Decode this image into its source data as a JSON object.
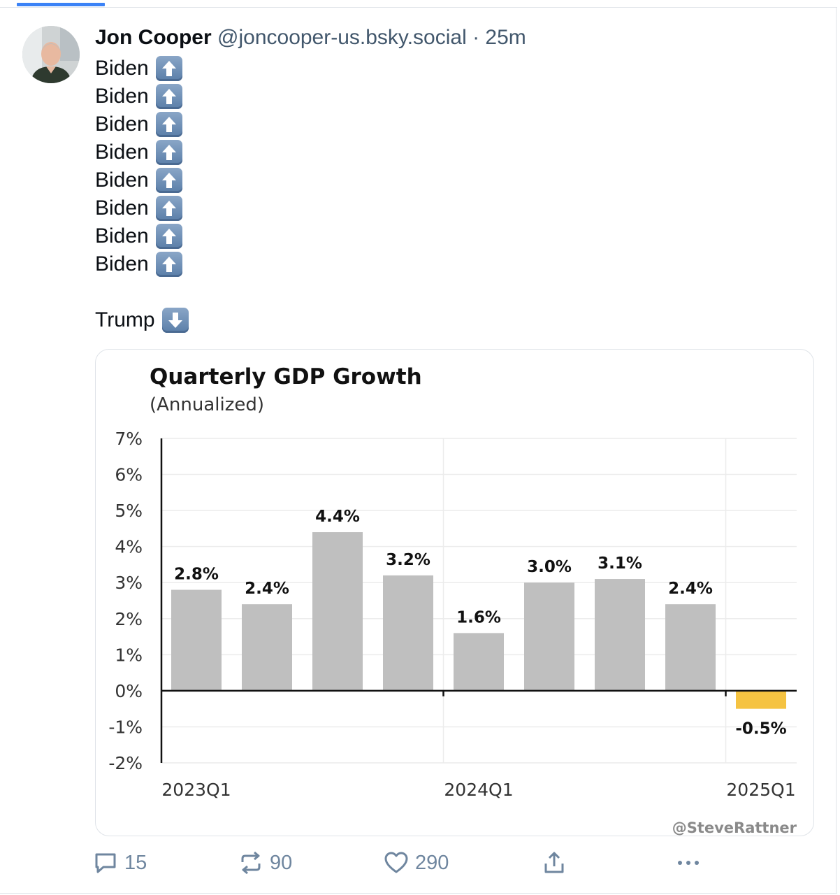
{
  "post": {
    "author_name": "Jon Cooper",
    "author_handle": "@joncooper-us.bsky.social",
    "separator": "·",
    "time": "25m",
    "lines": [
      "Biden",
      "Biden",
      "Biden",
      "Biden",
      "Biden",
      "Biden",
      "Biden",
      "Biden"
    ],
    "line_icon": "up-arrow-emoji-icon",
    "trump_line": "Trump",
    "trump_icon": "down-arrow-emoji-icon"
  },
  "embed": {
    "credit": "@SteveRattner"
  },
  "chart_data": {
    "type": "bar",
    "title": "Quarterly GDP Growth",
    "subtitle": "(Annualized)",
    "xlabel": "",
    "ylabel": "",
    "values": [
      2.8,
      2.4,
      4.4,
      3.2,
      1.6,
      3.0,
      3.1,
      2.4,
      -0.5
    ],
    "data_labels": [
      "2.8%",
      "2.4%",
      "4.4%",
      "3.2%",
      "1.6%",
      "3.0%",
      "3.1%",
      "2.4%",
      "-0.5%"
    ],
    "x_tick_labels": [
      "2023Q1",
      "2024Q1",
      "2025Q1"
    ],
    "x_tick_positions": [
      0,
      4,
      8
    ],
    "ylim": [
      -2,
      7
    ],
    "y_ticks": [
      -2,
      -1,
      0,
      1,
      2,
      3,
      4,
      5,
      6,
      7
    ],
    "y_tick_labels": [
      "-2%",
      "-1%",
      "0%",
      "1%",
      "2%",
      "3%",
      "4%",
      "5%",
      "6%",
      "7%"
    ],
    "grid": true,
    "colors": {
      "bar": "#bfbfbf",
      "highlight": "#f5c342",
      "highlight_index": 8
    }
  },
  "actions": {
    "replies": "15",
    "reposts": "90",
    "likes": "290"
  },
  "colors": {
    "accent": "#3b82f6",
    "muted": "#6f869f",
    "handle": "#42576c"
  }
}
